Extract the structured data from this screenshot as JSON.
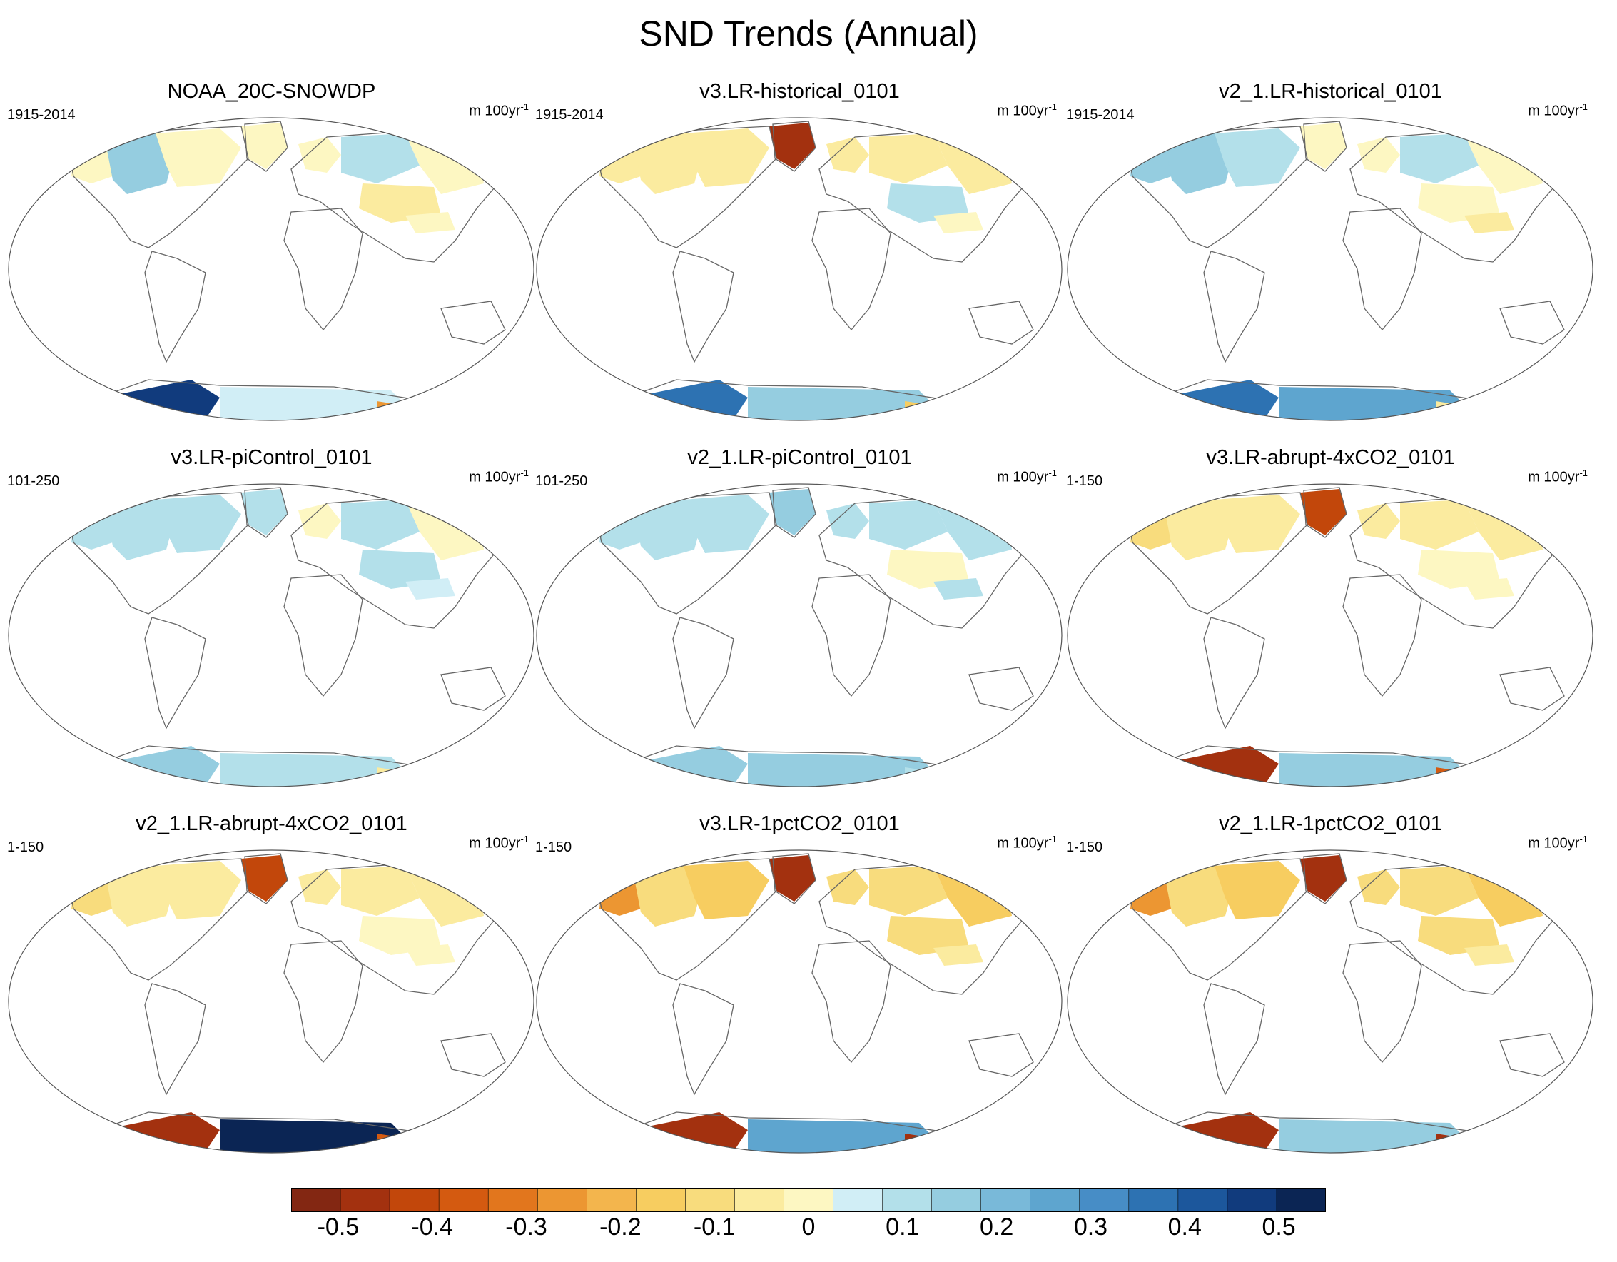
{
  "title": "SND Trends (Annual)",
  "units_prefix": "m 100yr",
  "units_exp": "-1",
  "chart_data": {
    "type": "heatmap",
    "projection": "Robinson world map, grid-cell trend fields",
    "variable": "SND trend",
    "units": "m 100yr-1",
    "panels": [
      {
        "title": "NOAA_20C-SNOWDP",
        "period": "1915-2014",
        "regions": {
          "alaska": -0.05,
          "canada_w": 0.1,
          "canada_e": -0.05,
          "greenland": -0.05,
          "scandinavia": -0.05,
          "siberia_w": 0.05,
          "siberia_e": -0.05,
          "asia_c": -0.1,
          "tibet": -0.05,
          "antarctica_w": 0.4,
          "antarctica_e": 0.0,
          "antarctica_rim": -0.3
        }
      },
      {
        "title": "v3.LR-historical_0101",
        "period": "1915-2014",
        "regions": {
          "alaska": -0.1,
          "canada_w": -0.1,
          "canada_e": -0.1,
          "greenland": -0.5,
          "scandinavia": -0.1,
          "siberia_w": -0.1,
          "siberia_e": -0.1,
          "asia_c": 0.05,
          "tibet": -0.05,
          "antarctica_w": 0.3,
          "antarctica_e": 0.1,
          "antarctica_rim": -0.2
        }
      },
      {
        "title": "v2_1.LR-historical_0101",
        "period": "1915-2014",
        "regions": {
          "alaska": 0.1,
          "canada_w": 0.1,
          "canada_e": 0.05,
          "greenland": -0.05,
          "scandinavia": -0.05,
          "siberia_w": 0.05,
          "siberia_e": -0.05,
          "asia_c": -0.05,
          "tibet": -0.1,
          "antarctica_w": 0.3,
          "antarctica_e": 0.2,
          "antarctica_rim": -0.1
        }
      },
      {
        "title": "v3.LR-piControl_0101",
        "period": "101-250",
        "regions": {
          "alaska": 0.05,
          "canada_w": 0.05,
          "canada_e": 0.05,
          "greenland": 0.05,
          "scandinavia": -0.05,
          "siberia_w": 0.05,
          "siberia_e": -0.05,
          "asia_c": 0.05,
          "tibet": 0.0,
          "antarctica_w": 0.1,
          "antarctica_e": 0.05,
          "antarctica_rim": -0.1
        }
      },
      {
        "title": "v2_1.LR-piControl_0101",
        "period": "101-250",
        "regions": {
          "alaska": 0.05,
          "canada_w": 0.05,
          "canada_e": 0.05,
          "greenland": 0.1,
          "scandinavia": 0.05,
          "siberia_w": 0.05,
          "siberia_e": 0.05,
          "asia_c": -0.05,
          "tibet": 0.05,
          "antarctica_w": 0.1,
          "antarctica_e": 0.1,
          "antarctica_rim": 0.05
        }
      },
      {
        "title": "v3.LR-abrupt-4xCO2_0101",
        "period": "1-150",
        "regions": {
          "alaska": -0.15,
          "canada_w": -0.1,
          "canada_e": -0.1,
          "greenland": -0.45,
          "scandinavia": -0.1,
          "siberia_w": -0.1,
          "siberia_e": -0.1,
          "asia_c": -0.05,
          "tibet": -0.05,
          "antarctica_w": -0.5,
          "antarctica_e": 0.1,
          "antarctica_rim": -0.4
        }
      },
      {
        "title": "v2_1.LR-abrupt-4xCO2_0101",
        "period": "1-150",
        "regions": {
          "alaska": -0.15,
          "canada_w": -0.1,
          "canada_e": -0.1,
          "greenland": -0.45,
          "scandinavia": -0.1,
          "siberia_w": -0.1,
          "siberia_e": -0.1,
          "asia_c": -0.05,
          "tibet": -0.05,
          "antarctica_w": -0.5,
          "antarctica_e": 0.5,
          "antarctica_rim": -0.4
        }
      },
      {
        "title": "v3.LR-1pctCO2_0101",
        "period": "1-150",
        "regions": {
          "alaska": -0.3,
          "canada_w": -0.15,
          "canada_e": -0.2,
          "greenland": -0.5,
          "scandinavia": -0.15,
          "siberia_w": -0.15,
          "siberia_e": -0.2,
          "asia_c": -0.15,
          "tibet": -0.1,
          "antarctica_w": -0.5,
          "antarctica_e": 0.2,
          "antarctica_rim": -0.5
        }
      },
      {
        "title": "v2_1.LR-1pctCO2_0101",
        "period": "1-150",
        "regions": {
          "alaska": -0.3,
          "canada_w": -0.15,
          "canada_e": -0.2,
          "greenland": -0.5,
          "scandinavia": -0.15,
          "siberia_w": -0.15,
          "siberia_e": -0.2,
          "asia_c": -0.15,
          "tibet": -0.1,
          "antarctica_w": -0.5,
          "antarctica_e": 0.1,
          "antarctica_rim": -0.5
        }
      }
    ],
    "colorbar": {
      "min": -0.55,
      "max": 0.55,
      "step": 0.05,
      "colors": [
        "#832712",
        "#a3310f",
        "#c2470b",
        "#d45a10",
        "#e2761d",
        "#ec9632",
        "#f3b54d",
        "#f7cd60",
        "#f8dc7d",
        "#fbeb9f",
        "#fdf7c2",
        "#d1eef6",
        "#b3e0ea",
        "#95cde0",
        "#79b9d9",
        "#5ea5cf",
        "#478dc6",
        "#2d72b2",
        "#1c579c",
        "#113b7d",
        "#0b2554"
      ],
      "tick_labels": [
        "-0.5",
        "-0.4",
        "-0.3",
        "-0.2",
        "-0.1",
        "0",
        "0.1",
        "0.2",
        "0.3",
        "0.4",
        "0.5"
      ],
      "tick_values": [
        -0.5,
        -0.4,
        -0.3,
        -0.2,
        -0.1,
        0,
        0.1,
        0.2,
        0.3,
        0.4,
        0.5
      ]
    }
  }
}
